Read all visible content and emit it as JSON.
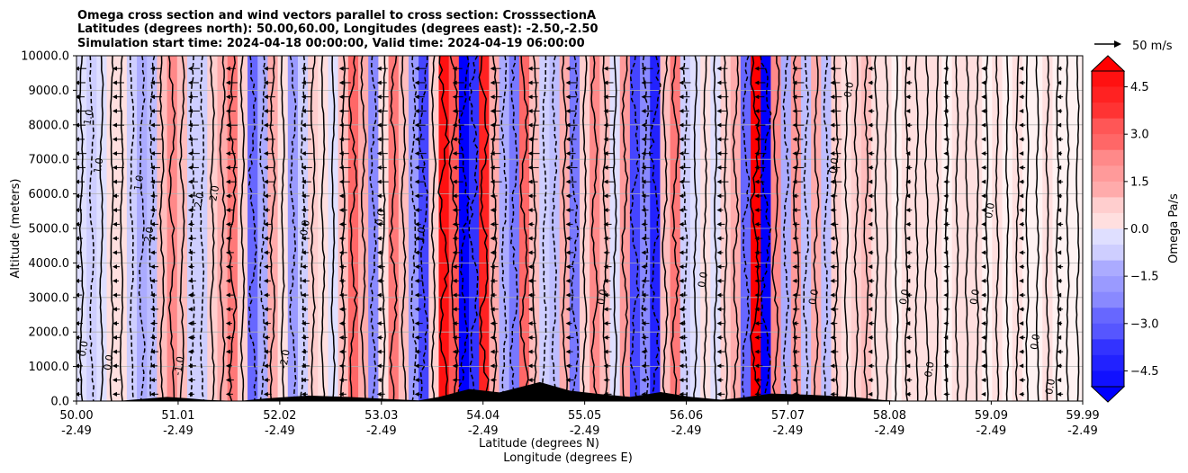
{
  "chart_data": {
    "type": "heatmap",
    "title_lines": [
      "Omega cross section and wind vectors parallel to cross section: CrosssectionA",
      "Latitudes (degrees north): 50.00,60.00, Longitudes (degrees east): -2.50,-2.50",
      "Simulation start time: 2024-04-18 00:00:00, Valid time: 2024-04-19 06:00:00"
    ],
    "ylabel": "Altitude (meters)",
    "xlabel_lines": [
      "Latitude (degrees N)",
      "Longitude (degrees E)"
    ],
    "ylim": [
      0,
      10000
    ],
    "y_ticks": [
      "0.0",
      "1000.0",
      "2000.0",
      "3000.0",
      "4000.0",
      "5000.0",
      "6000.0",
      "7000.0",
      "8000.0",
      "9000.0",
      "10000.0"
    ],
    "x_ticks": [
      {
        "lat": "50.00",
        "lon": "-2.49"
      },
      {
        "lat": "51.01",
        "lon": "-2.49"
      },
      {
        "lat": "52.02",
        "lon": "-2.49"
      },
      {
        "lat": "53.03",
        "lon": "-2.49"
      },
      {
        "lat": "54.04",
        "lon": "-2.49"
      },
      {
        "lat": "55.05",
        "lon": "-2.49"
      },
      {
        "lat": "56.06",
        "lon": "-2.49"
      },
      {
        "lat": "57.07",
        "lon": "-2.49"
      },
      {
        "lat": "58.08",
        "lon": "-2.49"
      },
      {
        "lat": "59.09",
        "lon": "-2.49"
      },
      {
        "lat": "59.99",
        "lon": "-2.49"
      }
    ],
    "grid": "horizontal",
    "colorbar": {
      "label": "Omega Pa/s",
      "range": [
        -5.0,
        5.0
      ],
      "extend": "both",
      "ticks": [
        "4.5",
        "3.0",
        "1.5",
        "0.0",
        "−1.5",
        "−3.0",
        "−4.5"
      ]
    },
    "quiver_key": "50 m/s",
    "contour_labels": [
      "0.0",
      "1.0",
      "2.0",
      "-1.0",
      "-2.0"
    ],
    "columns": [
      {
        "lat": 50.05,
        "omega": -0.5
      },
      {
        "lat": 50.15,
        "omega": -0.8
      },
      {
        "lat": 50.25,
        "omega": -0.3
      },
      {
        "lat": 50.35,
        "omega": 0.3
      },
      {
        "lat": 50.45,
        "omega": 0.2
      },
      {
        "lat": 50.55,
        "omega": -0.6
      },
      {
        "lat": 50.65,
        "omega": -1.6
      },
      {
        "lat": 50.75,
        "omega": -1.2
      },
      {
        "lat": 50.85,
        "omega": 1.0
      },
      {
        "lat": 50.95,
        "omega": 2.0
      },
      {
        "lat": 51.05,
        "omega": 1.2
      },
      {
        "lat": 51.15,
        "omega": -0.8
      },
      {
        "lat": 51.25,
        "omega": -0.6
      },
      {
        "lat": 51.35,
        "omega": 0.8
      },
      {
        "lat": 51.45,
        "omega": 1.5
      },
      {
        "lat": 51.55,
        "omega": 2.6
      },
      {
        "lat": 51.65,
        "omega": 0.6
      },
      {
        "lat": 51.75,
        "omega": -2.8
      },
      {
        "lat": 51.85,
        "omega": -1.5
      },
      {
        "lat": 51.95,
        "omega": 1.6
      },
      {
        "lat": 52.05,
        "omega": 0.3
      },
      {
        "lat": 52.15,
        "omega": -1.8
      },
      {
        "lat": 52.25,
        "omega": -0.8
      },
      {
        "lat": 52.35,
        "omega": 0.7
      },
      {
        "lat": 52.45,
        "omega": 0.2
      },
      {
        "lat": 52.55,
        "omega": -0.4
      },
      {
        "lat": 52.65,
        "omega": 1.2
      },
      {
        "lat": 52.75,
        "omega": 2.8
      },
      {
        "lat": 52.85,
        "omega": 1.4
      },
      {
        "lat": 52.95,
        "omega": -2.0
      },
      {
        "lat": 53.05,
        "omega": 0.5
      },
      {
        "lat": 53.15,
        "omega": 2.4
      },
      {
        "lat": 53.25,
        "omega": 1.0
      },
      {
        "lat": 53.35,
        "omega": -1.8
      },
      {
        "lat": 53.45,
        "omega": -3.4
      },
      {
        "lat": 53.55,
        "omega": 0.8
      },
      {
        "lat": 53.65,
        "omega": 4.6
      },
      {
        "lat": 53.75,
        "omega": 3.2
      },
      {
        "lat": 53.85,
        "omega": -5.0
      },
      {
        "lat": 53.95,
        "omega": -3.8
      },
      {
        "lat": 54.05,
        "omega": 4.2
      },
      {
        "lat": 54.15,
        "omega": 1.6
      },
      {
        "lat": 54.25,
        "omega": -1.4
      },
      {
        "lat": 54.35,
        "omega": -2.6
      },
      {
        "lat": 54.45,
        "omega": 2.8
      },
      {
        "lat": 54.55,
        "omega": 1.0
      },
      {
        "lat": 54.65,
        "omega": -0.6
      },
      {
        "lat": 54.75,
        "omega": -1.0
      },
      {
        "lat": 54.85,
        "omega": 1.4
      },
      {
        "lat": 54.95,
        "omega": -2.4
      },
      {
        "lat": 55.05,
        "omega": 0.8
      },
      {
        "lat": 55.15,
        "omega": 2.2
      },
      {
        "lat": 55.25,
        "omega": 1.0
      },
      {
        "lat": 55.35,
        "omega": -0.5
      },
      {
        "lat": 55.45,
        "omega": 1.8
      },
      {
        "lat": 55.55,
        "omega": -3.6
      },
      {
        "lat": 55.65,
        "omega": -2.0
      },
      {
        "lat": 55.75,
        "omega": -4.4
      },
      {
        "lat": 55.85,
        "omega": 1.2
      },
      {
        "lat": 55.95,
        "omega": 2.6
      },
      {
        "lat": 56.05,
        "omega": -0.8
      },
      {
        "lat": 56.15,
        "omega": -0.4
      },
      {
        "lat": 56.25,
        "omega": 0.4
      },
      {
        "lat": 56.35,
        "omega": -0.3
      },
      {
        "lat": 56.45,
        "omega": 0.6
      },
      {
        "lat": 56.55,
        "omega": 1.6
      },
      {
        "lat": 56.65,
        "omega": -3.0
      },
      {
        "lat": 56.75,
        "omega": 5.0
      },
      {
        "lat": 56.85,
        "omega": -5.0
      },
      {
        "lat": 56.95,
        "omega": 2.2
      },
      {
        "lat": 57.05,
        "omega": -1.4
      },
      {
        "lat": 57.15,
        "omega": 1.8
      },
      {
        "lat": 57.25,
        "omega": -1.2
      },
      {
        "lat": 57.35,
        "omega": 1.4
      },
      {
        "lat": 57.45,
        "omega": -1.0
      },
      {
        "lat": 57.55,
        "omega": 0.8
      },
      {
        "lat": 57.65,
        "omega": 0.4
      },
      {
        "lat": 57.75,
        "omega": 0.6
      },
      {
        "lat": 57.85,
        "omega": 0.9
      },
      {
        "lat": 57.95,
        "omega": 0.4
      },
      {
        "lat": 58.05,
        "omega": 0.2
      },
      {
        "lat": 58.15,
        "omega": 0.1
      },
      {
        "lat": 58.25,
        "omega": 0.3
      },
      {
        "lat": 58.35,
        "omega": 0.2
      },
      {
        "lat": 58.45,
        "omega": 0.5
      },
      {
        "lat": 58.55,
        "omega": 0.3
      },
      {
        "lat": 58.65,
        "omega": 0.1
      },
      {
        "lat": 58.75,
        "omega": 0.2
      },
      {
        "lat": 58.85,
        "omega": 0.3
      },
      {
        "lat": 58.95,
        "omega": 0.2
      },
      {
        "lat": 59.05,
        "omega": 0.1
      },
      {
        "lat": 59.15,
        "omega": 0.2
      },
      {
        "lat": 59.25,
        "omega": 0.1
      },
      {
        "lat": 59.35,
        "omega": 0.2
      },
      {
        "lat": 59.45,
        "omega": 0.1
      },
      {
        "lat": 59.55,
        "omega": 0.1
      },
      {
        "lat": 59.65,
        "omega": 0.2
      },
      {
        "lat": 59.75,
        "omega": 0.1
      },
      {
        "lat": 59.85,
        "omega": 0.1
      },
      {
        "lat": 59.95,
        "omega": 0.1
      }
    ],
    "colors": {
      "max_red": "#ff0000",
      "max_blue": "#0000ff",
      "contour": "#000000",
      "terrain": "#000000",
      "grid": "#b0b0b0"
    }
  }
}
